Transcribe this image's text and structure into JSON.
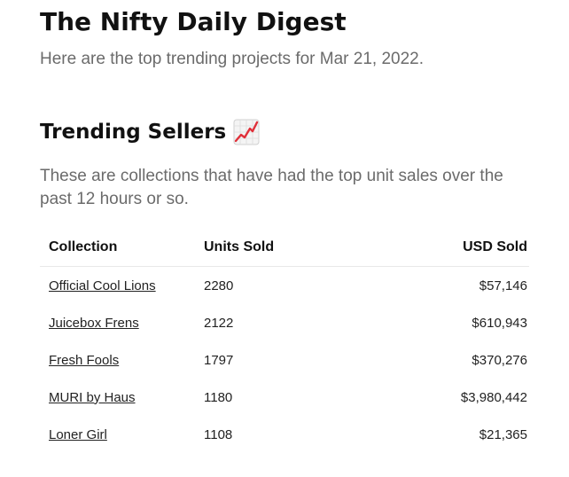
{
  "header": {
    "title": "The Nifty Daily Digest",
    "subtitle": "Here are the top trending projects for Mar 21, 2022."
  },
  "section": {
    "title": "Trending Sellers",
    "icon": "chart-increasing-icon",
    "description": "These are collections that have had the top unit sales over the past 12 hours or so."
  },
  "table": {
    "columns": [
      "Collection",
      "Units Sold",
      "USD Sold"
    ],
    "rows": [
      {
        "collection": "Official Cool Lions",
        "units": "2280",
        "usd": "$57,146"
      },
      {
        "collection": "Juicebox Frens",
        "units": "2122",
        "usd": "$610,943"
      },
      {
        "collection": "Fresh Fools",
        "units": "1797",
        "usd": "$370,276"
      },
      {
        "collection": "MURI by Haus",
        "units": "1180",
        "usd": "$3,980,442"
      },
      {
        "collection": "Loner Girl",
        "units": "1108",
        "usd": "$21,365"
      }
    ]
  }
}
